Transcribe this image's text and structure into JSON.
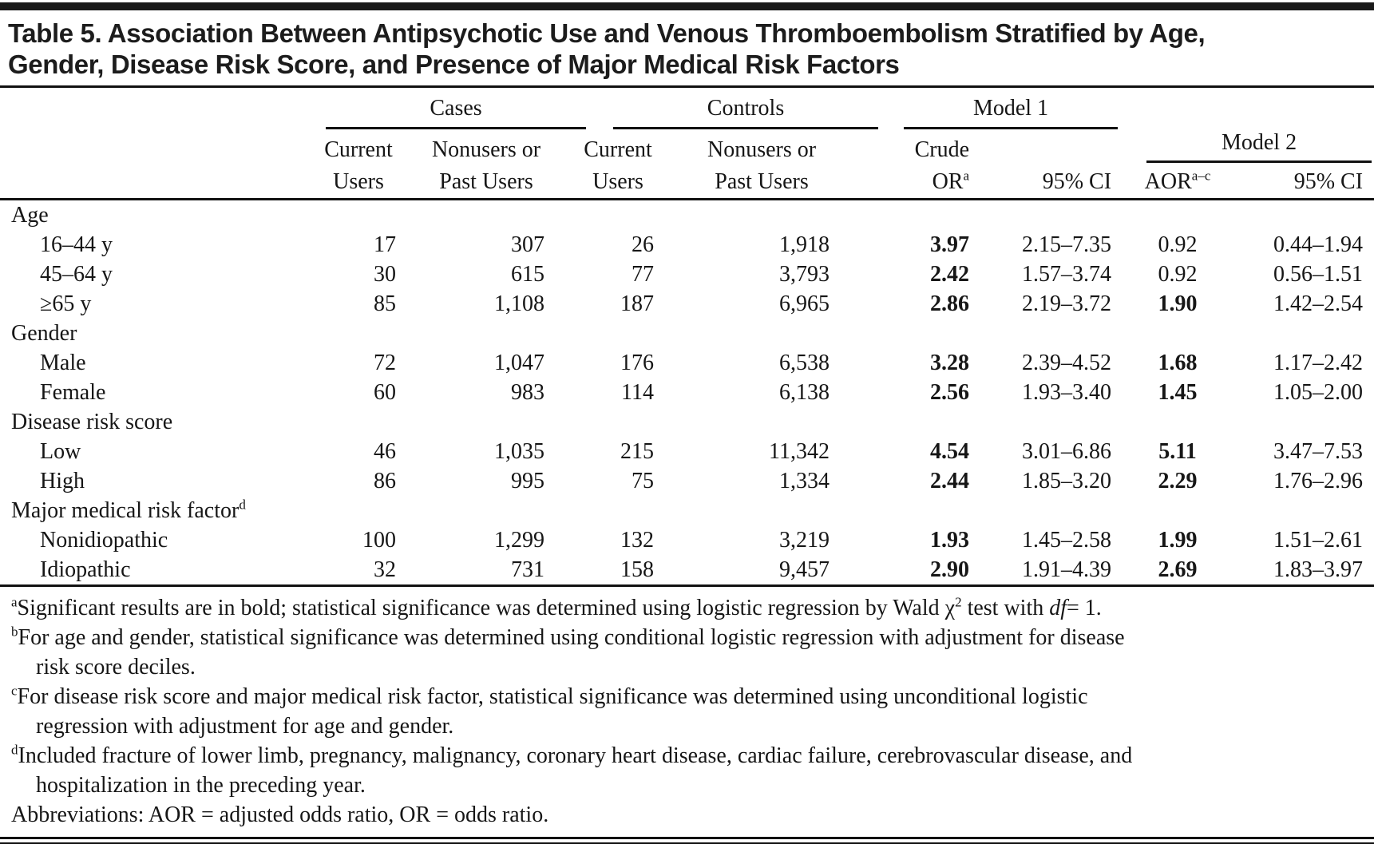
{
  "title": {
    "line1": "Table 5. Association Between Antipsychotic Use and Venous Thromboembolism Stratified by Age,",
    "line2": "Gender, Disease Risk Score, and Presence of Major Medical Risk Factors"
  },
  "header": {
    "cases": "Cases",
    "controls": "Controls",
    "model1": "Model 1",
    "model2": "Model 2",
    "current_top": "Current",
    "current_bottom": "Users",
    "nonusers_top": "Nonusers or",
    "nonusers_bottom": "Past Users",
    "crude_top": "Crude",
    "or": "OR",
    "or_sup": "a",
    "ci_model1": "95% CI",
    "aor": "AOR",
    "aor_sup": "a–c",
    "ci_model2": "95% CI"
  },
  "rows": [
    {
      "type": "section",
      "label": "Age"
    },
    {
      "type": "item",
      "label": "16–44 y",
      "cases_current": "17",
      "cases_nonusers": "307",
      "controls_current": "26",
      "controls_nonusers": "1,918",
      "crude_or": "3.97",
      "or_bold": true,
      "model1_ci": "2.15–7.35",
      "aor": "0.92",
      "aor_bold": false,
      "model2_ci": "0.44–1.94"
    },
    {
      "type": "item",
      "label": "45–64 y",
      "cases_current": "30",
      "cases_nonusers": "615",
      "controls_current": "77",
      "controls_nonusers": "3,793",
      "crude_or": "2.42",
      "or_bold": true,
      "model1_ci": "1.57–3.74",
      "aor": "0.92",
      "aor_bold": false,
      "model2_ci": "0.56–1.51"
    },
    {
      "type": "item",
      "label": "≥65 y",
      "cases_current": "85",
      "cases_nonusers": "1,108",
      "controls_current": "187",
      "controls_nonusers": "6,965",
      "crude_or": "2.86",
      "or_bold": true,
      "model1_ci": "2.19–3.72",
      "aor": "1.90",
      "aor_bold": true,
      "model2_ci": "1.42–2.54"
    },
    {
      "type": "section",
      "label": "Gender"
    },
    {
      "type": "item",
      "label": "Male",
      "cases_current": "72",
      "cases_nonusers": "1,047",
      "controls_current": "176",
      "controls_nonusers": "6,538",
      "crude_or": "3.28",
      "or_bold": true,
      "model1_ci": "2.39–4.52",
      "aor": "1.68",
      "aor_bold": true,
      "model2_ci": "1.17–2.42"
    },
    {
      "type": "item",
      "label": "Female",
      "cases_current": "60",
      "cases_nonusers": "983",
      "controls_current": "114",
      "controls_nonusers": "6,138",
      "crude_or": "2.56",
      "or_bold": true,
      "model1_ci": "1.93–3.40",
      "aor": "1.45",
      "aor_bold": true,
      "model2_ci": "1.05–2.00"
    },
    {
      "type": "section",
      "label": "Disease risk score"
    },
    {
      "type": "item",
      "label": "Low",
      "cases_current": "46",
      "cases_nonusers": "1,035",
      "controls_current": "215",
      "controls_nonusers": "11,342",
      "crude_or": "4.54",
      "or_bold": true,
      "model1_ci": "3.01–6.86",
      "aor": "5.11",
      "aor_bold": true,
      "model2_ci": "3.47–7.53"
    },
    {
      "type": "item",
      "label": "High",
      "cases_current": "86",
      "cases_nonusers": "995",
      "controls_current": "75",
      "controls_nonusers": "1,334",
      "crude_or": "2.44",
      "or_bold": true,
      "model1_ci": "1.85–3.20",
      "aor": "2.29",
      "aor_bold": true,
      "model2_ci": "1.76–2.96"
    },
    {
      "type": "section",
      "label": "Major medical risk factor",
      "sup": "d"
    },
    {
      "type": "item",
      "label": "Nonidiopathic",
      "cases_current": "100",
      "cases_nonusers": "1,299",
      "controls_current": "132",
      "controls_nonusers": "3,219",
      "crude_or": "1.93",
      "or_bold": true,
      "model1_ci": "1.45–2.58",
      "aor": "1.99",
      "aor_bold": true,
      "model2_ci": "1.51–2.61"
    },
    {
      "type": "item",
      "label": "Idiopathic",
      "cases_current": "32",
      "cases_nonusers": "731",
      "controls_current": "158",
      "controls_nonusers": "9,457",
      "crude_or": "2.90",
      "or_bold": true,
      "model1_ci": "1.91–4.39",
      "aor": "2.69",
      "aor_bold": true,
      "model2_ci": "1.83–3.97"
    }
  ],
  "footnotes": {
    "a": {
      "marker": "a",
      "t1": "Significant results are in bold; statistical significance was determined using logistic regression by Wald χ",
      "chi_sup": "2",
      "t2": " test with ",
      "italic": "df",
      "t3": "= 1."
    },
    "b": {
      "marker": "b",
      "l1": "For age and gender, statistical significance was determined using conditional logistic regression with adjustment for disease",
      "l2": "risk score deciles."
    },
    "c": {
      "marker": "c",
      "l1": "For disease risk score and major medical risk factor, statistical significance was determined using unconditional logistic",
      "l2": "regression with adjustment for age and gender."
    },
    "d": {
      "marker": "d",
      "l1": "Included fracture of lower limb, pregnancy, malignancy, coronary heart disease, cardiac failure, cerebrovascular disease, and",
      "l2": "hospitalization in the preceding year."
    },
    "abbreviations": "Abbreviations: AOR = adjusted odds ratio, OR = odds ratio."
  }
}
